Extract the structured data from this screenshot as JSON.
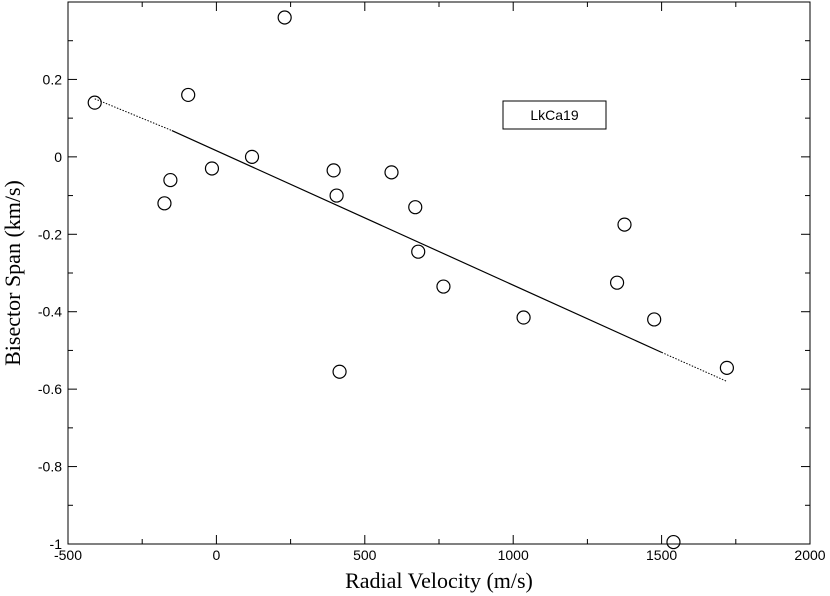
{
  "chart_data": {
    "type": "scatter",
    "xlabel": "Radial Velocity (m/s)",
    "ylabel": "Bisector Span (km/s)",
    "xlim": [
      -500,
      2000
    ],
    "ylim": [
      -1,
      0.4
    ],
    "x_ticks": [
      -500,
      0,
      500,
      1000,
      1500,
      2000
    ],
    "x_tick_labels": [
      "-500",
      "0",
      "500",
      "1000",
      "1500",
      "2000"
    ],
    "y_ticks": [
      -1,
      -0.8,
      -0.6,
      -0.4,
      -0.2,
      0,
      0.2
    ],
    "y_tick_labels": [
      "-1",
      "-0.8",
      "-0.6",
      "-0.4",
      "-0.2",
      "0",
      "0.2"
    ],
    "annotation": "LkCa19",
    "grid": false,
    "points": [
      {
        "x": -410,
        "y": 0.14
      },
      {
        "x": -95,
        "y": 0.16
      },
      {
        "x": 230,
        "y": 0.36
      },
      {
        "x": 120,
        "y": 0.0
      },
      {
        "x": -15,
        "y": -0.03
      },
      {
        "x": -155,
        "y": -0.06
      },
      {
        "x": -175,
        "y": -0.12
      },
      {
        "x": 395,
        "y": -0.035
      },
      {
        "x": 405,
        "y": -0.1
      },
      {
        "x": 590,
        "y": -0.04
      },
      {
        "x": 670,
        "y": -0.13
      },
      {
        "x": 680,
        "y": -0.245
      },
      {
        "x": 765,
        "y": -0.335
      },
      {
        "x": 415,
        "y": -0.555
      },
      {
        "x": 1035,
        "y": -0.415
      },
      {
        "x": 1350,
        "y": -0.325
      },
      {
        "x": 1375,
        "y": -0.175
      },
      {
        "x": 1475,
        "y": -0.42
      },
      {
        "x": 1720,
        "y": -0.545
      },
      {
        "x": 1540,
        "y": -0.995
      }
    ],
    "fit_line": {
      "solid": [
        [
          -150,
          0.068
        ],
        [
          1500,
          -0.505
        ]
      ],
      "dotted_segments": [
        [
          [
            -410,
            0.15
          ],
          [
            -150,
            0.068
          ]
        ],
        [
          [
            1500,
            -0.505
          ],
          [
            1720,
            -0.58
          ]
        ]
      ]
    }
  }
}
